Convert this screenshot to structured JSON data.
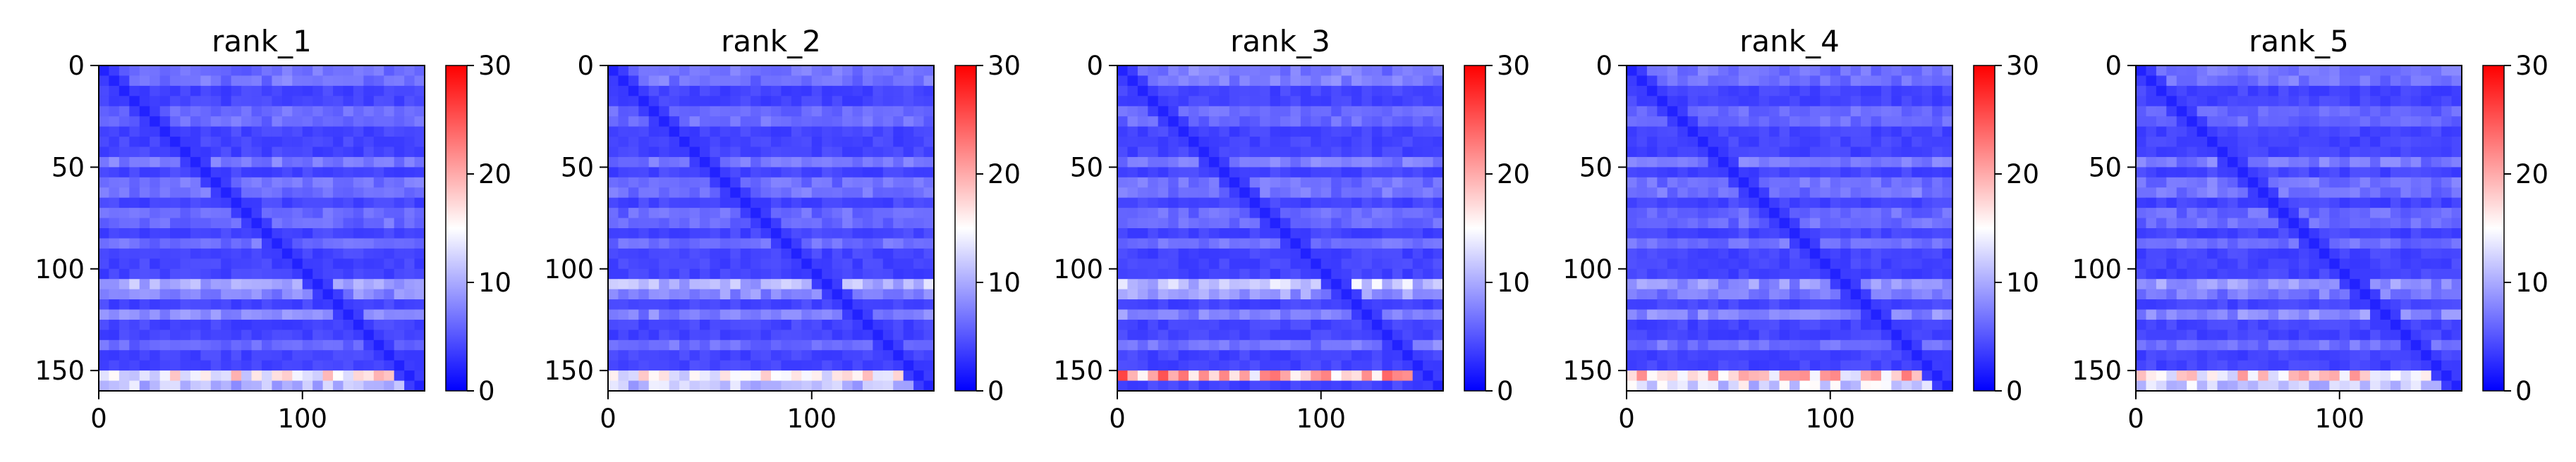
{
  "chart_data": [
    {
      "type": "heatmap",
      "title": "rank_1",
      "x_ticks": [
        0,
        100
      ],
      "y_ticks": [
        0,
        50,
        100,
        150
      ],
      "xlim": [
        0,
        160
      ],
      "ylim": [
        160,
        0
      ],
      "colorbar": {
        "ticks": [
          0,
          10,
          20,
          30
        ],
        "range": [
          0,
          30
        ]
      },
      "diagonal_value": 2,
      "background_value": 4,
      "row_bands": [
        {
          "row": 5,
          "value": 9
        },
        {
          "row": 25,
          "value": 8
        },
        {
          "row": 47,
          "value": 8
        },
        {
          "row": 60,
          "value": 9
        },
        {
          "row": 75,
          "value": 8
        },
        {
          "row": 88,
          "value": 7
        },
        {
          "row": 109,
          "value": 13
        },
        {
          "row": 123,
          "value": 9
        },
        {
          "row": 138,
          "value": 7
        },
        {
          "row": 154,
          "value": 21
        }
      ]
    },
    {
      "type": "heatmap",
      "title": "rank_2",
      "x_ticks": [
        0,
        100
      ],
      "y_ticks": [
        0,
        50,
        100,
        150
      ],
      "xlim": [
        0,
        160
      ],
      "ylim": [
        160,
        0
      ],
      "colorbar": {
        "ticks": [
          0,
          10,
          20,
          30
        ],
        "range": [
          0,
          30
        ]
      },
      "diagonal_value": 2,
      "background_value": 4,
      "row_bands": [
        {
          "row": 5,
          "value": 9
        },
        {
          "row": 25,
          "value": 8
        },
        {
          "row": 47,
          "value": 8
        },
        {
          "row": 60,
          "value": 9
        },
        {
          "row": 75,
          "value": 8
        },
        {
          "row": 88,
          "value": 7
        },
        {
          "row": 109,
          "value": 14
        },
        {
          "row": 123,
          "value": 9
        },
        {
          "row": 138,
          "value": 7
        },
        {
          "row": 154,
          "value": 21
        }
      ]
    },
    {
      "type": "heatmap",
      "title": "rank_3",
      "x_ticks": [
        0,
        100
      ],
      "y_ticks": [
        0,
        50,
        100,
        150
      ],
      "xlim": [
        0,
        160
      ],
      "ylim": [
        160,
        0
      ],
      "colorbar": {
        "ticks": [
          0,
          10,
          20,
          30
        ],
        "range": [
          0,
          30
        ]
      },
      "diagonal_value": 2,
      "background_value": 4,
      "row_bands": [
        {
          "row": 5,
          "value": 10
        },
        {
          "row": 25,
          "value": 8
        },
        {
          "row": 47,
          "value": 8
        },
        {
          "row": 60,
          "value": 9
        },
        {
          "row": 75,
          "value": 8
        },
        {
          "row": 88,
          "value": 7
        },
        {
          "row": 109,
          "value": 16
        },
        {
          "row": 123,
          "value": 9
        },
        {
          "row": 138,
          "value": 8
        },
        {
          "row": 153,
          "value": 24
        }
      ]
    },
    {
      "type": "heatmap",
      "title": "rank_4",
      "x_ticks": [
        0,
        100
      ],
      "y_ticks": [
        0,
        50,
        100,
        150
      ],
      "xlim": [
        0,
        160
      ],
      "ylim": [
        160,
        0
      ],
      "colorbar": {
        "ticks": [
          0,
          10,
          20,
          30
        ],
        "range": [
          0,
          30
        ]
      },
      "diagonal_value": 2,
      "background_value": 4,
      "row_bands": [
        {
          "row": 5,
          "value": 9
        },
        {
          "row": 25,
          "value": 8
        },
        {
          "row": 47,
          "value": 8
        },
        {
          "row": 60,
          "value": 9
        },
        {
          "row": 75,
          "value": 8
        },
        {
          "row": 88,
          "value": 7
        },
        {
          "row": 109,
          "value": 11
        },
        {
          "row": 123,
          "value": 9
        },
        {
          "row": 138,
          "value": 7
        },
        {
          "row": 154,
          "value": 25
        }
      ]
    },
    {
      "type": "heatmap",
      "title": "rank_5",
      "x_ticks": [
        0,
        100
      ],
      "y_ticks": [
        0,
        50,
        100,
        150
      ],
      "xlim": [
        0,
        160
      ],
      "ylim": [
        160,
        0
      ],
      "colorbar": {
        "ticks": [
          0,
          10,
          20,
          30
        ],
        "range": [
          0,
          30
        ]
      },
      "diagonal_value": 2,
      "background_value": 4,
      "row_bands": [
        {
          "row": 5,
          "value": 9
        },
        {
          "row": 25,
          "value": 8
        },
        {
          "row": 47,
          "value": 8
        },
        {
          "row": 60,
          "value": 9
        },
        {
          "row": 75,
          "value": 8
        },
        {
          "row": 88,
          "value": 7
        },
        {
          "row": 109,
          "value": 11
        },
        {
          "row": 123,
          "value": 9
        },
        {
          "row": 138,
          "value": 7
        },
        {
          "row": 154,
          "value": 23
        }
      ]
    }
  ],
  "colormap": {
    "low": "#0000ff",
    "mid": "#ffffff",
    "high": "#ff0000"
  }
}
